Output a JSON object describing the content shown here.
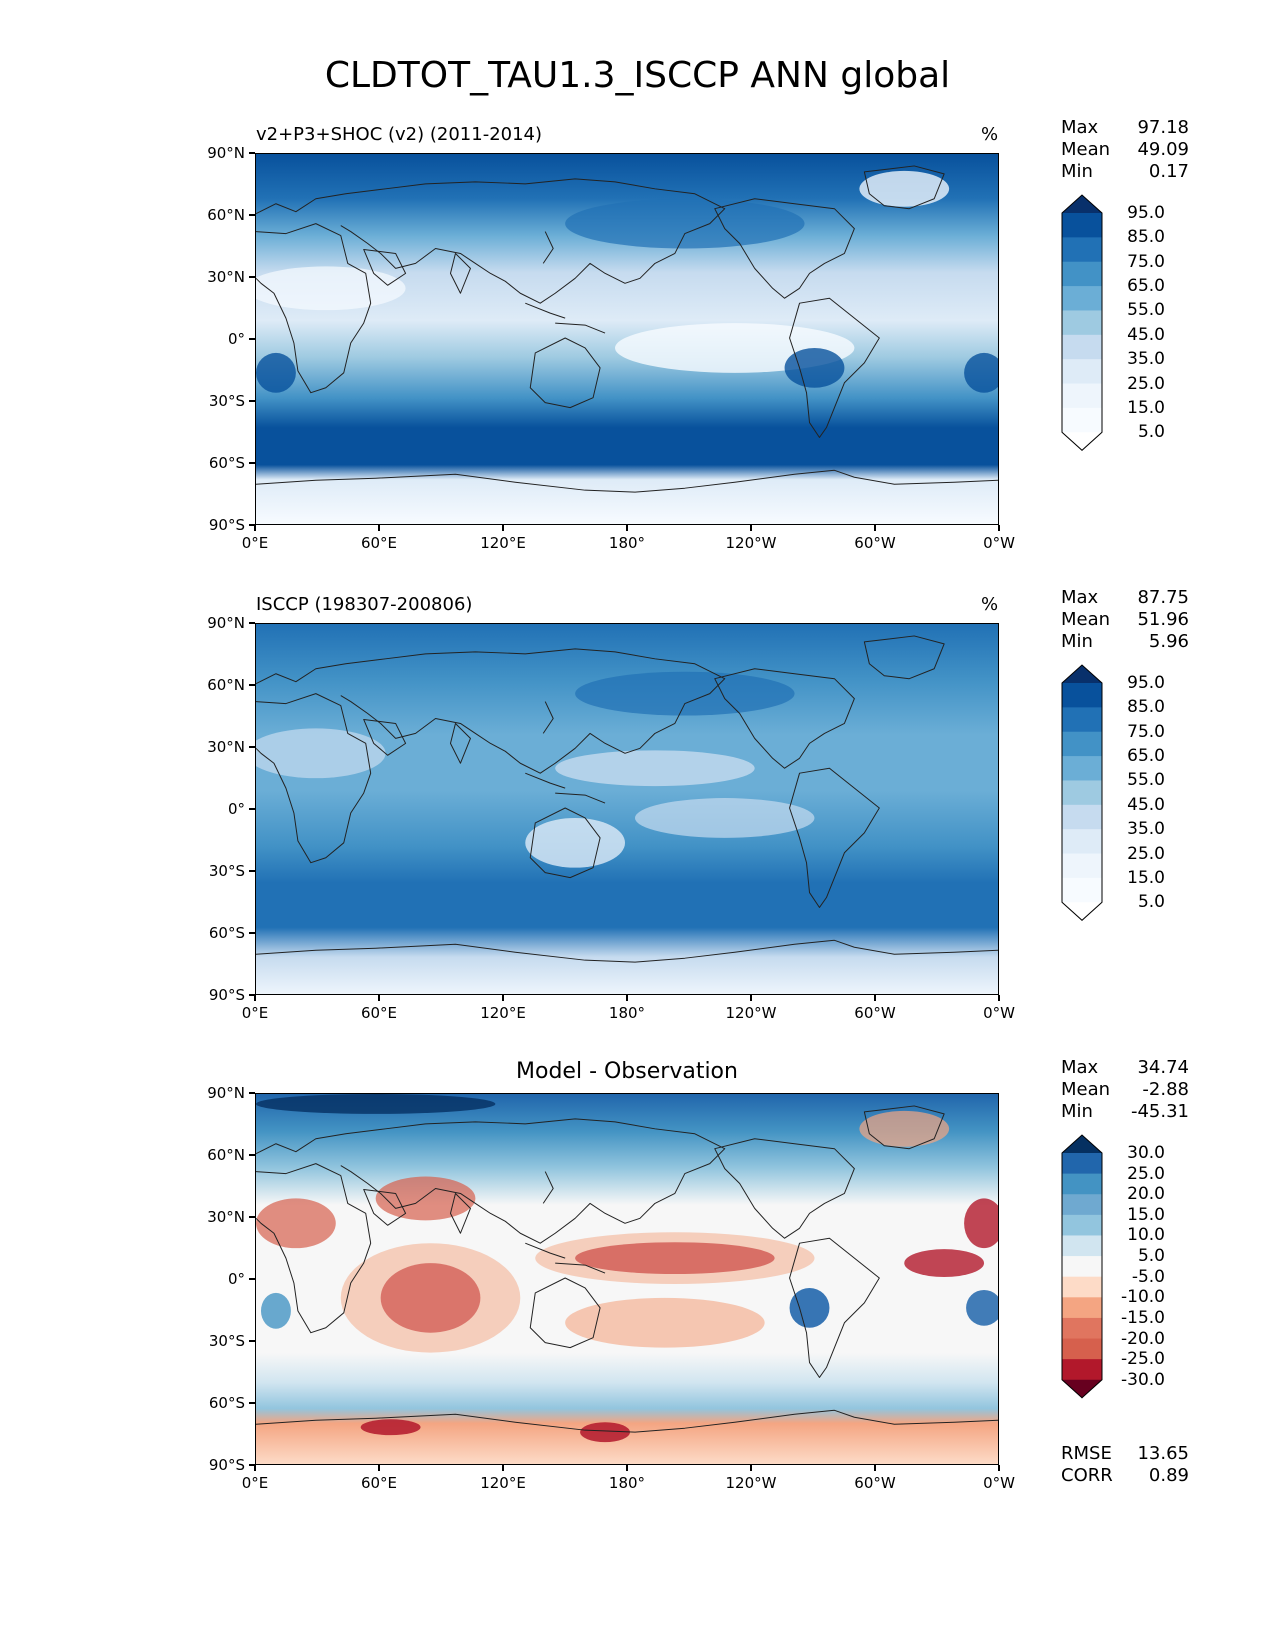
{
  "title": "CLDTOT_TAU1.3_ISCCP ANN global",
  "axes": {
    "lat_ticks": [
      "90°N",
      "60°N",
      "30°N",
      "0°",
      "30°S",
      "60°S",
      "90°S"
    ],
    "lon_ticks": [
      "0°E",
      "60°E",
      "120°E",
      "180°",
      "120°W",
      "60°W",
      "0°W"
    ]
  },
  "panels": [
    {
      "left_title": "v2+P3+SHOC (v2) (2011-2014)",
      "unit": "%",
      "center_title": "",
      "stats": {
        "max_label": "Max",
        "max": "97.18",
        "mean_label": "Mean",
        "mean": "49.09",
        "min_label": "Min",
        "min": "0.17"
      },
      "colorbar": {
        "labels": [
          "95.0",
          "85.0",
          "75.0",
          "65.0",
          "55.0",
          "45.0",
          "35.0",
          "25.0",
          "15.0",
          "5.0"
        ],
        "colors": [
          "#08306b",
          "#08519c",
          "#2171b5",
          "#4292c6",
          "#6baed6",
          "#9ecae1",
          "#c6dbef",
          "#deebf7",
          "#eef5fc",
          "#f7fbff",
          "#ffffff"
        ]
      }
    },
    {
      "left_title": "ISCCP (198307-200806)",
      "unit": "%",
      "center_title": "",
      "stats": {
        "max_label": "Max",
        "max": "87.75",
        "mean_label": "Mean",
        "mean": "51.96",
        "min_label": "Min",
        "min": "5.96"
      },
      "colorbar": {
        "labels": [
          "95.0",
          "85.0",
          "75.0",
          "65.0",
          "55.0",
          "45.0",
          "35.0",
          "25.0",
          "15.0",
          "5.0"
        ],
        "colors": [
          "#08306b",
          "#08519c",
          "#2171b5",
          "#4292c6",
          "#6baed6",
          "#9ecae1",
          "#c6dbef",
          "#deebf7",
          "#eef5fc",
          "#f7fbff",
          "#ffffff"
        ]
      }
    },
    {
      "left_title": "",
      "unit": "",
      "center_title": "Model - Observation",
      "stats": {
        "max_label": "Max",
        "max": "34.74",
        "mean_label": "Mean",
        "mean": "-2.88",
        "min_label": "Min",
        "min": "-45.31",
        "rmse_label": "RMSE",
        "rmse": "13.65",
        "corr_label": "CORR",
        "corr": "0.89"
      },
      "colorbar": {
        "labels": [
          "30.0",
          "25.0",
          "20.0",
          "15.0",
          "10.0",
          "5.0",
          "-5.0",
          "-10.0",
          "-15.0",
          "-20.0",
          "-25.0",
          "-30.0"
        ],
        "colors": [
          "#053061",
          "#2166ac",
          "#4393c3",
          "#6fa9d0",
          "#92c5de",
          "#d1e5f0",
          "#f7f7f7",
          "#fddbc7",
          "#f4a582",
          "#e0755f",
          "#d6604d",
          "#b2182b",
          "#67001f"
        ]
      }
    }
  ]
}
